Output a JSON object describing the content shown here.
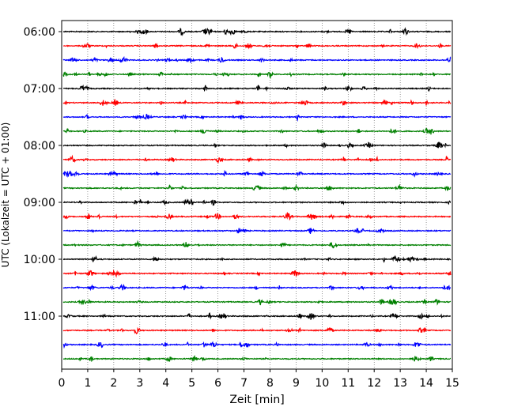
{
  "chart_data": {
    "type": "line",
    "title": "",
    "xlabel": "Zeit  [min]",
    "ylabel": "UTC (Lokalzeit = UTC + 01:00)",
    "xlim": [
      0,
      15
    ],
    "x_ticks": [
      0,
      1,
      2,
      3,
      4,
      5,
      6,
      7,
      8,
      9,
      10,
      11,
      12,
      13,
      14,
      15
    ],
    "x_tick_labels": [
      "0",
      "1",
      "2",
      "3",
      "4",
      "5",
      "6",
      "7",
      "8",
      "9",
      "10",
      "11",
      "12",
      "13",
      "14",
      "15"
    ],
    "y_ticks": [
      "06:00",
      "07:00",
      "08:00",
      "09:00",
      "10:00",
      "11:00"
    ],
    "grid": "vertical dotted at each minute",
    "trace_colors": [
      "#000000",
      "#ff0000",
      "#0000ff",
      "#008000"
    ],
    "traces": [
      {
        "start": "06:00",
        "color": "#000000"
      },
      {
        "start": "06:15",
        "color": "#ff0000"
      },
      {
        "start": "06:30",
        "color": "#0000ff"
      },
      {
        "start": "06:45",
        "color": "#008000"
      },
      {
        "start": "07:00",
        "color": "#000000"
      },
      {
        "start": "07:15",
        "color": "#ff0000"
      },
      {
        "start": "07:30",
        "color": "#0000ff"
      },
      {
        "start": "07:45",
        "color": "#008000"
      },
      {
        "start": "08:00",
        "color": "#000000"
      },
      {
        "start": "08:15",
        "color": "#ff0000"
      },
      {
        "start": "08:30",
        "color": "#0000ff"
      },
      {
        "start": "08:45",
        "color": "#008000"
      },
      {
        "start": "09:00",
        "color": "#000000"
      },
      {
        "start": "09:15",
        "color": "#ff0000"
      },
      {
        "start": "09:30",
        "color": "#0000ff"
      },
      {
        "start": "09:45",
        "color": "#008000"
      },
      {
        "start": "10:00",
        "color": "#000000"
      },
      {
        "start": "10:15",
        "color": "#ff0000"
      },
      {
        "start": "10:30",
        "color": "#0000ff"
      },
      {
        "start": "10:45",
        "color": "#008000"
      },
      {
        "start": "11:00",
        "color": "#000000"
      },
      {
        "start": "11:15",
        "color": "#ff0000"
      },
      {
        "start": "11:30",
        "color": "#0000ff"
      },
      {
        "start": "11:45",
        "color": "#008000"
      }
    ]
  }
}
